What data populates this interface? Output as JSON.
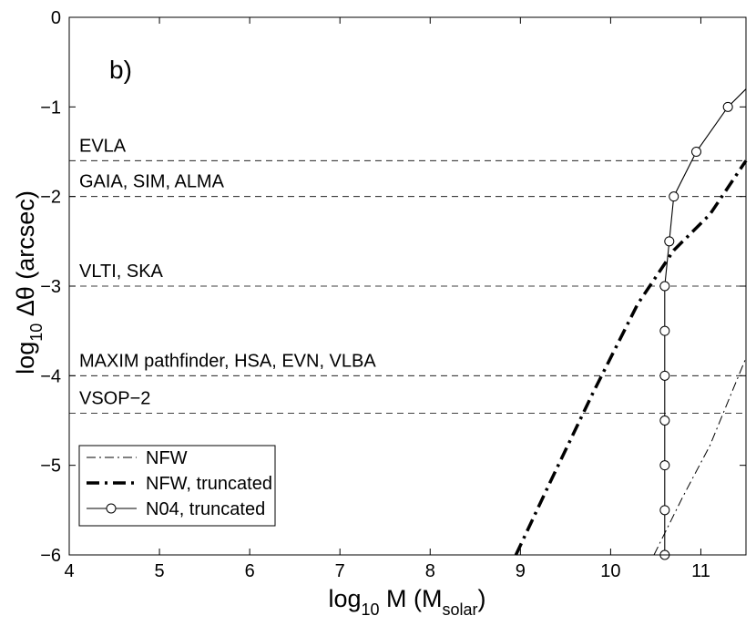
{
  "chart_data": {
    "type": "line",
    "panel_label": "b)",
    "xlabel": {
      "pre": "log",
      "sub": "10",
      "post": " M (M",
      "sub2": "solar",
      "end": ")"
    },
    "ylabel": {
      "pre": "log",
      "sub": "10",
      "post": " Δθ (arcsec)"
    },
    "xlim": [
      4,
      11.5
    ],
    "ylim": [
      -6,
      0
    ],
    "xticks": [
      4,
      5,
      6,
      7,
      8,
      9,
      10,
      11
    ],
    "yticks": [
      0,
      -1,
      -2,
      -3,
      -4,
      -5,
      -6
    ],
    "ytick_labels": [
      "0",
      "−1",
      "−2",
      "−3",
      "−4",
      "−5",
      "−6"
    ],
    "instrument_lines": [
      {
        "label": "EVLA",
        "y": -1.6
      },
      {
        "label": "GAIA, SIM, ALMA",
        "y": -2.0
      },
      {
        "label": "VLTI, SKA",
        "y": -3.0
      },
      {
        "label": "MAXIM pathfinder, HSA, EVN, VLBA",
        "y": -4.0
      },
      {
        "label": "VSOP−2",
        "y": -4.42
      }
    ],
    "legend": {
      "position": "lower-left",
      "entries": [
        "NFW",
        "NFW, truncated",
        "N04, truncated"
      ]
    },
    "series": [
      {
        "name": "NFW",
        "style": "thin-dashdot",
        "points": [
          [
            10.48,
            -6.0
          ],
          [
            10.8,
            -5.35
          ],
          [
            11.1,
            -4.78
          ],
          [
            11.5,
            -3.8
          ]
        ]
      },
      {
        "name": "NFW, truncated",
        "style": "thick-dashdot",
        "points": [
          [
            8.95,
            -6.0
          ],
          [
            9.3,
            -5.25
          ],
          [
            9.8,
            -4.2
          ],
          [
            10.3,
            -3.2
          ],
          [
            10.7,
            -2.6
          ],
          [
            11.1,
            -2.2
          ],
          [
            11.5,
            -1.6
          ]
        ]
      },
      {
        "name": "N04, truncated",
        "style": "solid-circle",
        "points": [
          [
            10.6,
            -6.0
          ],
          [
            10.6,
            -5.5
          ],
          [
            10.6,
            -5.0
          ],
          [
            10.6,
            -4.5
          ],
          [
            10.6,
            -4.0
          ],
          [
            10.6,
            -3.5
          ],
          [
            10.6,
            -3.0
          ],
          [
            10.65,
            -2.5
          ],
          [
            10.7,
            -2.0
          ],
          [
            10.95,
            -1.5
          ],
          [
            11.3,
            -1.0
          ],
          [
            11.5,
            -0.8
          ]
        ],
        "markers": [
          [
            10.6,
            -6.0
          ],
          [
            10.6,
            -5.5
          ],
          [
            10.6,
            -5.0
          ],
          [
            10.6,
            -4.5
          ],
          [
            10.6,
            -4.0
          ],
          [
            10.6,
            -3.5
          ],
          [
            10.6,
            -3.0
          ],
          [
            10.65,
            -2.5
          ],
          [
            10.7,
            -2.0
          ],
          [
            10.95,
            -1.5
          ],
          [
            11.3,
            -1.0
          ]
        ]
      }
    ]
  }
}
